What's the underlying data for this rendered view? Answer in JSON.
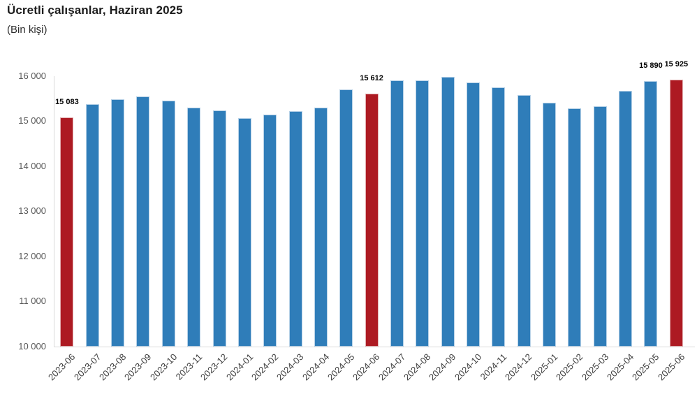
{
  "title": "Ücretli çalışanlar, Haziran 2025",
  "subtitle": "(Bin kişi)",
  "colors": {
    "bar_default": "#2f7db9",
    "bar_highlight": "#ad1a22",
    "axis_line": "#d9d9d9",
    "y_tick_label": "#595959",
    "x_tick_label": "#3d3d3d",
    "data_label": "#000000",
    "background": "#ffffff"
  },
  "chart_data": {
    "type": "bar",
    "title": "Ücretli çalışanlar, Haziran 2025",
    "subtitle": "(Bin kişi)",
    "xlabel": "",
    "ylabel": "",
    "categories": [
      "2023-06",
      "2023-07",
      "2023-08",
      "2023-09",
      "2023-10",
      "2023-11",
      "2023-12",
      "2024-01",
      "2024-02",
      "2024-03",
      "2024-04",
      "2024-05",
      "2024-06",
      "2024-07",
      "2024-08",
      "2024-09",
      "2024-10",
      "2024-11",
      "2024-12",
      "2025-01",
      "2025-02",
      "2025-03",
      "2025-04",
      "2025-05",
      "2025-06"
    ],
    "values": [
      15083,
      15368,
      15485,
      15553,
      15450,
      15300,
      15234,
      15068,
      15140,
      15226,
      15296,
      15700,
      15612,
      15905,
      15908,
      15980,
      15858,
      15742,
      15578,
      15408,
      15290,
      15322,
      15665,
      15890,
      15925
    ],
    "highlighted_categories": [
      "2023-06",
      "2024-06",
      "2025-06"
    ],
    "data_labels": {
      "2023-06": "15 083",
      "2024-06": "15 612",
      "2025-05": "15 890",
      "2025-06": "15 925"
    },
    "ylim": [
      10000,
      16000
    ],
    "y_tick_step": 1000,
    "y_tick_labels": [
      "16 000",
      "15 000",
      "14 000",
      "13 000",
      "12 000",
      "11 000",
      "10 000"
    ],
    "grid": false,
    "legend": false
  }
}
